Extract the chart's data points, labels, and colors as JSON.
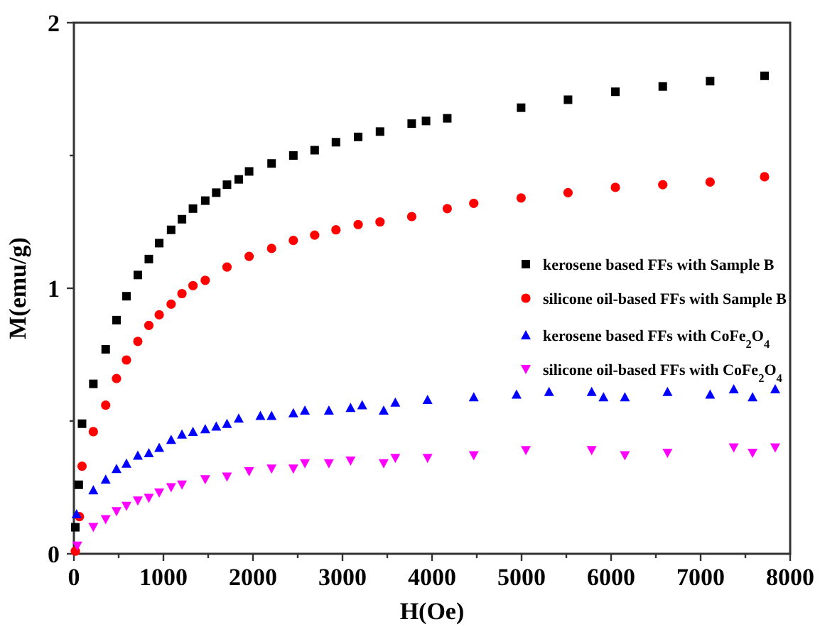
{
  "chart_data": {
    "type": "scatter",
    "xlabel": "H(Oe)",
    "ylabel": "M(emu/g)",
    "xlim": [
      0,
      8000
    ],
    "ylim": [
      0,
      2
    ],
    "xticks": [
      0,
      {
        "value": 500,
        "label": null
      },
      1000,
      {
        "value": 1500,
        "label": null
      },
      2000,
      {
        "value": 2500,
        "label": null
      },
      3000,
      {
        "value": 3500,
        "label": null
      },
      4000,
      {
        "value": 4500,
        "label": null
      },
      5000,
      {
        "value": 5500,
        "label": null
      },
      6000,
      {
        "value": 6500,
        "label": null
      },
      7000,
      {
        "value": 7500,
        "label": null
      },
      8000
    ],
    "yticks": [
      0,
      {
        "value": 0.5,
        "label": null
      },
      1,
      {
        "value": 1.5,
        "label": null
      },
      2
    ],
    "legend": "right",
    "grid": false,
    "series": [
      {
        "name": "kerosene based FFs with Sample B",
        "color": "#000000",
        "marker": "square",
        "x": [
          16,
          54,
          91,
          217,
          355,
          476,
          587,
          714,
          837,
          953,
          1086,
          1207,
          1330,
          1467,
          1590,
          1710,
          1841,
          1957,
          2208,
          2451,
          2689,
          2927,
          3175,
          3419,
          3773,
          3933,
          4170,
          4995,
          5519,
          6048,
          6577,
          7106,
          7714
        ],
        "values": [
          0.1,
          0.26,
          0.49,
          0.64,
          0.77,
          0.88,
          0.97,
          1.05,
          1.11,
          1.17,
          1.22,
          1.26,
          1.3,
          1.33,
          1.36,
          1.39,
          1.41,
          1.44,
          1.47,
          1.5,
          1.52,
          1.55,
          1.57,
          1.59,
          1.62,
          1.63,
          1.64,
          1.68,
          1.71,
          1.74,
          1.76,
          1.78,
          1.8
        ]
      },
      {
        "name": "silicone oil-based FFs with Sample B",
        "color": "#ff0000",
        "marker": "circle",
        "x": [
          16,
          62,
          91,
          217,
          355,
          476,
          587,
          714,
          837,
          953,
          1086,
          1207,
          1330,
          1467,
          1710,
          1957,
          2208,
          2451,
          2689,
          2927,
          3175,
          3419,
          3773,
          4170,
          4466,
          4995,
          5519,
          6048,
          6577,
          7106,
          7714
        ],
        "values": [
          0.01,
          0.14,
          0.33,
          0.46,
          0.56,
          0.66,
          0.73,
          0.8,
          0.86,
          0.9,
          0.94,
          0.98,
          1.01,
          1.03,
          1.08,
          1.12,
          1.15,
          1.18,
          1.2,
          1.22,
          1.24,
          1.25,
          1.27,
          1.3,
          1.32,
          1.34,
          1.36,
          1.38,
          1.39,
          1.4,
          1.42
        ]
      },
      {
        "name": "kerosene based FFs with CoFe$_{2}$O$_{4}$",
        "color": "#0000ff",
        "marker": "triangle",
        "x": [
          30,
          217,
          355,
          476,
          587,
          714,
          837,
          953,
          1086,
          1207,
          1330,
          1467,
          1590,
          1710,
          1841,
          2083,
          2208,
          2451,
          2580,
          2848,
          3090,
          3220,
          3460,
          3590,
          3950,
          4466,
          4944,
          5307,
          5783,
          5915,
          6154,
          6630,
          7106,
          7370,
          7580,
          7833
        ],
        "values": [
          0.15,
          0.24,
          0.28,
          0.32,
          0.34,
          0.37,
          0.38,
          0.4,
          0.43,
          0.45,
          0.46,
          0.47,
          0.48,
          0.49,
          0.51,
          0.52,
          0.52,
          0.53,
          0.54,
          0.54,
          0.55,
          0.56,
          0.54,
          0.57,
          0.58,
          0.59,
          0.6,
          0.61,
          0.61,
          0.59,
          0.59,
          0.61,
          0.6,
          0.62,
          0.59,
          0.62
        ]
      },
      {
        "name": "silicone oil-based FFs with CoFe$_{2}$O$_{4}$",
        "color": "#ff00ff",
        "marker": "triangle-down",
        "x": [
          38,
          217,
          355,
          476,
          587,
          714,
          837,
          953,
          1086,
          1207,
          1467,
          1710,
          1957,
          2208,
          2451,
          2580,
          2848,
          3090,
          3460,
          3590,
          3950,
          4466,
          5048,
          5783,
          6154,
          6630,
          7370,
          7580,
          7833
        ],
        "values": [
          0.03,
          0.1,
          0.13,
          0.16,
          0.18,
          0.2,
          0.21,
          0.23,
          0.25,
          0.26,
          0.28,
          0.29,
          0.31,
          0.32,
          0.32,
          0.34,
          0.34,
          0.35,
          0.34,
          0.36,
          0.36,
          0.37,
          0.39,
          0.39,
          0.37,
          0.38,
          0.4,
          0.38,
          0.4
        ]
      }
    ]
  }
}
